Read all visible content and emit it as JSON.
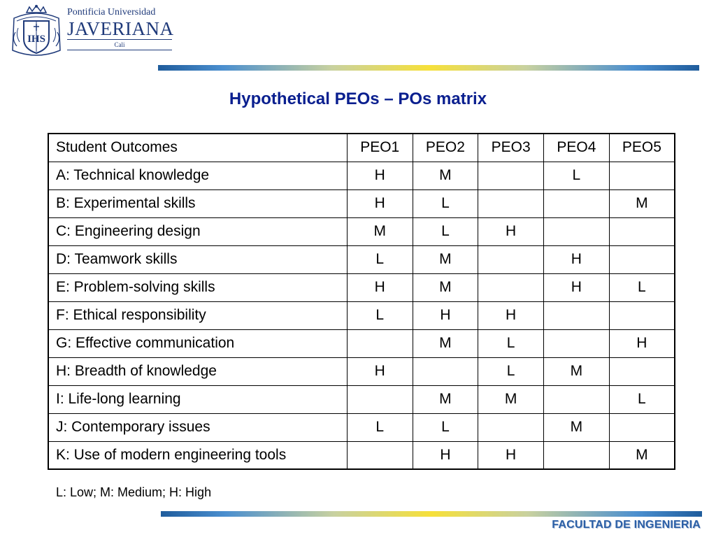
{
  "logo": {
    "line1": "Pontificia Universidad",
    "line2": "JAVERIANA",
    "line3": "Cali",
    "seal_icon": "university-seal-icon",
    "color": "#1f3a7a"
  },
  "title": "Hypothetical PEOs – POs matrix",
  "table": {
    "headers": [
      "Student Outcomes",
      "PEO1",
      "PEO2",
      "PEO3",
      "PEO4",
      "PEO5"
    ],
    "rows": [
      {
        "outcome": "A: Technical knowledge",
        "values": [
          "H",
          "M",
          "",
          "L",
          ""
        ]
      },
      {
        "outcome": "B: Experimental skills",
        "values": [
          "H",
          "L",
          "",
          "",
          "M"
        ]
      },
      {
        "outcome": "C: Engineering design",
        "values": [
          "M",
          "L",
          "H",
          "",
          ""
        ]
      },
      {
        "outcome": "D: Teamwork skills",
        "values": [
          "L",
          "M",
          "",
          "H",
          ""
        ]
      },
      {
        "outcome": "E: Problem-solving skills",
        "values": [
          "H",
          "M",
          "",
          "H",
          "L"
        ]
      },
      {
        "outcome": "F: Ethical responsibility",
        "values": [
          "L",
          "H",
          "H",
          "",
          ""
        ]
      },
      {
        "outcome": "G: Effective communication",
        "values": [
          "",
          "M",
          "L",
          "",
          "H"
        ]
      },
      {
        "outcome": "H: Breadth of knowledge",
        "values": [
          "H",
          "",
          "L",
          "M",
          ""
        ]
      },
      {
        "outcome": "I: Life-long learning",
        "values": [
          "",
          "M",
          "M",
          "",
          "L"
        ]
      },
      {
        "outcome": "J: Contemporary issues",
        "values": [
          "L",
          "L",
          "",
          "M",
          ""
        ]
      },
      {
        "outcome": "K: Use of modern engineering tools",
        "values": [
          "",
          "H",
          "H",
          "",
          "M"
        ]
      }
    ]
  },
  "legend": "L: Low; M: Medium; H: High",
  "footer": "FACULTAD DE INGENIERIA",
  "colors": {
    "title": "#0a1f8f",
    "footer": "#2b5fa6",
    "bar_blue": "#1f5c9c",
    "bar_yellow": "#f6e03a"
  }
}
